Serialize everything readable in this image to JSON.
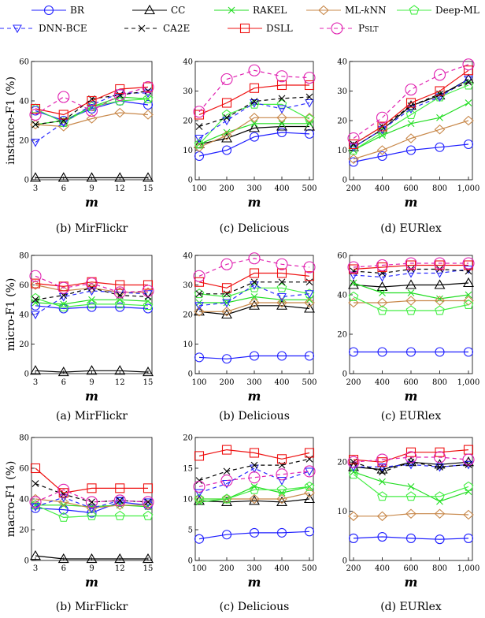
{
  "legend": [
    {
      "name": "BR",
      "color": "#1f1fff",
      "marker": "circle",
      "dash": false
    },
    {
      "name": "CC",
      "color": "#000000",
      "marker": "triangle",
      "dash": false
    },
    {
      "name": "RAKEL",
      "color": "#22dd22",
      "marker": "x",
      "dash": false
    },
    {
      "name": "ML-kNN",
      "color": "#c8884a",
      "marker": "diamond",
      "dash": false
    },
    {
      "name": "Deep-ML",
      "color": "#44ee44",
      "marker": "pentagon",
      "dash": false
    },
    {
      "name": "DNN-BCE",
      "color": "#2a2aff",
      "marker": "tridown",
      "dash": true
    },
    {
      "name": "CA2E",
      "color": "#000000",
      "marker": "x",
      "dash": true
    },
    {
      "name": "DSLL",
      "color": "#ee1111",
      "marker": "square",
      "dash": false
    },
    {
      "name": "PSLT",
      "color": "#e020b0",
      "marker": "circle",
      "dash": true
    }
  ],
  "chart_data": [
    {
      "type": "line",
      "caption": "(b) MirFlickr",
      "ylabel": "instance-F1 (%)",
      "xlabel": "m",
      "x": [
        3,
        6,
        9,
        12,
        15
      ],
      "xlim": [
        3,
        15
      ],
      "ylim": [
        0,
        60
      ],
      "yticks": [
        0,
        20,
        40,
        60
      ],
      "xticks": [
        "3",
        "6",
        "9",
        "12",
        "15"
      ],
      "series": [
        {
          "name": "BR",
          "values": [
            35,
            30,
            36,
            40,
            38
          ]
        },
        {
          "name": "CC",
          "values": [
            1,
            1,
            1,
            1,
            1
          ]
        },
        {
          "name": "RAKEL",
          "values": [
            28,
            30,
            37,
            42,
            41
          ]
        },
        {
          "name": "ML-kNN",
          "values": [
            28,
            27,
            31,
            34,
            33
          ]
        },
        {
          "name": "Deep-ML",
          "values": [
            36,
            29,
            37,
            40,
            41
          ]
        },
        {
          "name": "DNN-BCE",
          "values": [
            19,
            29,
            38,
            44,
            44
          ]
        },
        {
          "name": "CA2E",
          "values": [
            28,
            30,
            41,
            43,
            45
          ]
        },
        {
          "name": "DSLL",
          "values": [
            36,
            33,
            40,
            46,
            47
          ]
        },
        {
          "name": "PSLT",
          "values": [
            33,
            42,
            35,
            43,
            47
          ]
        }
      ]
    },
    {
      "type": "line",
      "caption": "(c) Delicious",
      "ylabel": "",
      "xlabel": "m",
      "x": [
        100,
        200,
        300,
        400,
        500
      ],
      "xlim": [
        100,
        500
      ],
      "ylim": [
        0,
        40
      ],
      "yticks": [
        0,
        10,
        20,
        30,
        40
      ],
      "xticks": [
        "100",
        "200",
        "300",
        "400",
        "500"
      ],
      "series": [
        {
          "name": "BR",
          "values": [
            8,
            10,
            14.5,
            16,
            15.5
          ]
        },
        {
          "name": "CC",
          "values": [
            12,
            14,
            17.5,
            18,
            18
          ]
        },
        {
          "name": "RAKEL",
          "values": [
            12,
            16,
            19,
            19,
            19
          ]
        },
        {
          "name": "ML-kNN",
          "values": [
            11,
            15,
            21,
            21,
            21
          ]
        },
        {
          "name": "Deep-ML",
          "values": [
            12,
            22,
            25.5,
            25.5,
            20.5
          ]
        },
        {
          "name": "DNN-BCE",
          "values": [
            14,
            20,
            26,
            24,
            26
          ]
        },
        {
          "name": "CA2E",
          "values": [
            18,
            21,
            26.5,
            27.5,
            28
          ]
        },
        {
          "name": "DSLL",
          "values": [
            22,
            26,
            31,
            32,
            32
          ]
        },
        {
          "name": "PSLT",
          "values": [
            23,
            34,
            37,
            35,
            34.5
          ]
        }
      ]
    },
    {
      "type": "line",
      "caption": "(d) EURlex",
      "ylabel": "",
      "xlabel": "m",
      "x": [
        200,
        400,
        600,
        800,
        1000
      ],
      "xlim": [
        200,
        1000
      ],
      "ylim": [
        0,
        40
      ],
      "yticks": [
        0,
        10,
        20,
        30,
        40
      ],
      "xticks": [
        "200",
        "400",
        "600",
        "800",
        "1,000"
      ],
      "series": [
        {
          "name": "BR",
          "values": [
            6,
            8,
            10,
            11,
            12
          ]
        },
        {
          "name": "CC",
          "values": [
            11,
            17,
            25,
            28.5,
            34
          ]
        },
        {
          "name": "RAKEL",
          "values": [
            10,
            15,
            19,
            21,
            26
          ]
        },
        {
          "name": "ML-kNN",
          "values": [
            7,
            10,
            14,
            17,
            20
          ]
        },
        {
          "name": "Deep-ML",
          "values": [
            10,
            16,
            22,
            28,
            32
          ]
        },
        {
          "name": "DNN-BCE",
          "values": [
            11,
            17,
            24,
            28,
            34
          ]
        },
        {
          "name": "CA2E",
          "values": [
            12,
            18,
            25,
            29,
            33
          ]
        },
        {
          "name": "DSLL",
          "values": [
            12,
            18,
            26,
            30,
            37
          ]
        },
        {
          "name": "PSLT",
          "values": [
            14,
            21,
            30.5,
            35.5,
            39
          ]
        }
      ]
    },
    {
      "type": "line",
      "caption": "(a) MirFlickr",
      "ylabel": "micro-F1 (%)",
      "xlabel": "m",
      "x": [
        3,
        6,
        9,
        12,
        15
      ],
      "xlim": [
        3,
        15
      ],
      "ylim": [
        0,
        80
      ],
      "yticks": [
        0,
        20,
        40,
        60,
        80
      ],
      "xticks": [
        "3",
        "6",
        "9",
        "12",
        "15"
      ],
      "series": [
        {
          "name": "BR",
          "values": [
            46,
            44,
            45,
            45,
            44
          ]
        },
        {
          "name": "CC",
          "values": [
            2,
            1,
            2,
            2,
            1
          ]
        },
        {
          "name": "RAKEL",
          "values": [
            48,
            47,
            50,
            50,
            49
          ]
        },
        {
          "name": "ML-kNN",
          "values": [
            60,
            56,
            58,
            55,
            55
          ]
        },
        {
          "name": "Deep-ML",
          "values": [
            51,
            45,
            47,
            47,
            46
          ]
        },
        {
          "name": "DNN-BCE",
          "values": [
            40,
            52,
            56,
            55,
            54
          ]
        },
        {
          "name": "CA2E",
          "values": [
            50,
            53,
            58,
            53,
            52
          ]
        },
        {
          "name": "DSLL",
          "values": [
            61,
            59,
            62,
            60,
            60
          ]
        },
        {
          "name": "PSLT",
          "values": [
            66,
            58,
            61,
            55,
            56
          ]
        }
      ]
    },
    {
      "type": "line",
      "caption": "(b) Delicious",
      "ylabel": "",
      "xlabel": "m",
      "x": [
        100,
        200,
        300,
        400,
        500
      ],
      "xlim": [
        100,
        500
      ],
      "ylim": [
        0,
        40
      ],
      "yticks": [
        0,
        10,
        20,
        30,
        40
      ],
      "xticks": [
        "100",
        "200",
        "300",
        "400",
        "500"
      ],
      "series": [
        {
          "name": "BR",
          "values": [
            5.5,
            5,
            6,
            6,
            6
          ]
        },
        {
          "name": "CC",
          "values": [
            21,
            20,
            23,
            23,
            22
          ]
        },
        {
          "name": "RAKEL",
          "values": [
            24,
            24,
            26,
            25,
            25
          ]
        },
        {
          "name": "ML-kNN",
          "values": [
            21,
            21,
            24,
            24,
            24
          ]
        },
        {
          "name": "Deep-ML",
          "values": [
            27,
            26,
            29,
            29,
            27
          ]
        },
        {
          "name": "DNN-BCE",
          "values": [
            23,
            24,
            30,
            26,
            27
          ]
        },
        {
          "name": "CA2E",
          "values": [
            27,
            27,
            31,
            31,
            31
          ]
        },
        {
          "name": "DSLL",
          "values": [
            31,
            29,
            34,
            34,
            33
          ]
        },
        {
          "name": "PSLT",
          "values": [
            33,
            37,
            39,
            37,
            36
          ]
        }
      ]
    },
    {
      "type": "line",
      "caption": "(c) EURlex",
      "ylabel": "",
      "xlabel": "m",
      "x": [
        200,
        400,
        600,
        800,
        1000
      ],
      "xlim": [
        200,
        1000
      ],
      "ylim": [
        0,
        60
      ],
      "yticks": [
        0,
        20,
        40,
        60
      ],
      "xticks": [
        "200",
        "400",
        "600",
        "800",
        "1,000"
      ],
      "series": [
        {
          "name": "BR",
          "values": [
            11,
            11,
            11,
            11,
            11
          ]
        },
        {
          "name": "CC",
          "values": [
            45,
            44,
            45,
            45,
            46
          ]
        },
        {
          "name": "RAKEL",
          "values": [
            46,
            41,
            41,
            38,
            40
          ]
        },
        {
          "name": "ML-kNN",
          "values": [
            36,
            36,
            37,
            37,
            37
          ]
        },
        {
          "name": "Deep-ML",
          "values": [
            39,
            32,
            32,
            32,
            35
          ]
        },
        {
          "name": "DNN-BCE",
          "values": [
            50,
            49,
            51,
            51,
            53
          ]
        },
        {
          "name": "CA2E",
          "values": [
            52,
            51,
            53,
            53,
            52
          ]
        },
        {
          "name": "DSLL",
          "values": [
            53,
            54,
            55,
            55,
            55
          ]
        },
        {
          "name": "PSLT",
          "values": [
            54,
            55,
            56,
            56,
            56
          ]
        }
      ]
    },
    {
      "type": "line",
      "caption": "(b) MirFlickr",
      "ylabel": "macro-F1 (%)",
      "xlabel": "m",
      "x": [
        3,
        6,
        9,
        12,
        15
      ],
      "xlim": [
        3,
        15
      ],
      "ylim": [
        0,
        80
      ],
      "yticks": [
        0,
        20,
        40,
        60,
        80
      ],
      "xticks": [
        "3",
        "6",
        "9",
        "12",
        "15"
      ],
      "series": [
        {
          "name": "BR",
          "values": [
            34,
            33,
            31,
            38,
            36
          ]
        },
        {
          "name": "CC",
          "values": [
            3,
            1,
            1,
            1,
            1
          ]
        },
        {
          "name": "RAKEL",
          "values": [
            36,
            36,
            35,
            36,
            35
          ]
        },
        {
          "name": "ML-kNN",
          "values": [
            40,
            38,
            34,
            36,
            36
          ]
        },
        {
          "name": "Deep-ML",
          "values": [
            36,
            28,
            29,
            29,
            29
          ]
        },
        {
          "name": "DNN-BCE",
          "values": [
            35,
            41,
            34,
            39,
            38
          ]
        },
        {
          "name": "CA2E",
          "values": [
            50,
            43,
            38,
            39,
            38
          ]
        },
        {
          "name": "DSLL",
          "values": [
            60,
            44,
            47,
            47,
            47
          ]
        },
        {
          "name": "PSLT",
          "values": [
            38,
            46,
            38,
            39,
            38
          ]
        }
      ]
    },
    {
      "type": "line",
      "caption": "(c) Delicious",
      "ylabel": "",
      "xlabel": "m",
      "x": [
        100,
        200,
        300,
        400,
        500
      ],
      "xlim": [
        100,
        500
      ],
      "ylim": [
        0,
        20
      ],
      "yticks": [
        0,
        5,
        10,
        15,
        20
      ],
      "xticks": [
        "100",
        "200",
        "300",
        "400",
        "500"
      ],
      "series": [
        {
          "name": "BR",
          "values": [
            3.5,
            4.2,
            4.5,
            4.5,
            4.7
          ]
        },
        {
          "name": "CC",
          "values": [
            9.7,
            9.5,
            9.7,
            9.5,
            10
          ]
        },
        {
          "name": "RAKEL",
          "values": [
            9.5,
            10,
            12,
            11,
            12
          ]
        },
        {
          "name": "ML-kNN",
          "values": [
            10,
            10,
            10,
            10,
            11
          ]
        },
        {
          "name": "Deep-ML",
          "values": [
            10,
            10,
            11.5,
            11.5,
            12
          ]
        },
        {
          "name": "DNN-BCE",
          "values": [
            11,
            12.5,
            15,
            13,
            14.5
          ]
        },
        {
          "name": "CA2E",
          "values": [
            13,
            14.5,
            15.5,
            15.5,
            16.5
          ]
        },
        {
          "name": "DSLL",
          "values": [
            17,
            18,
            17.5,
            16.5,
            17.5
          ]
        },
        {
          "name": "PSLT",
          "values": [
            12,
            13,
            13.5,
            14,
            14.5
          ]
        }
      ]
    },
    {
      "type": "line",
      "caption": "(d) EURlex",
      "ylabel": "",
      "xlabel": "m",
      "x": [
        200,
        400,
        600,
        800,
        1000
      ],
      "xlim": [
        200,
        1000
      ],
      "ylim": [
        0,
        25
      ],
      "yticks": [
        0,
        10,
        20
      ],
      "xticks": [
        "200",
        "400",
        "600",
        "800",
        "1,000"
      ],
      "series": [
        {
          "name": "BR",
          "values": [
            4.5,
            4.8,
            4.5,
            4.3,
            4.5
          ]
        },
        {
          "name": "CC",
          "values": [
            19,
            18.5,
            20,
            19.5,
            20
          ]
        },
        {
          "name": "RAKEL",
          "values": [
            18,
            16,
            15,
            12,
            14
          ]
        },
        {
          "name": "ML-kNN",
          "values": [
            9,
            9,
            9.5,
            9.5,
            9.3
          ]
        },
        {
          "name": "Deep-ML",
          "values": [
            17.5,
            13,
            13,
            13,
            15
          ]
        },
        {
          "name": "DNN-BCE",
          "values": [
            19,
            19,
            19.5,
            19,
            19.5
          ]
        },
        {
          "name": "CA2E",
          "values": [
            20,
            18,
            20,
            19,
            19.5
          ]
        },
        {
          "name": "DSLL",
          "values": [
            20.5,
            20,
            22,
            22,
            22.5
          ]
        },
        {
          "name": "PSLT",
          "values": [
            20,
            20.5,
            21,
            21,
            20.5
          ]
        }
      ]
    }
  ]
}
